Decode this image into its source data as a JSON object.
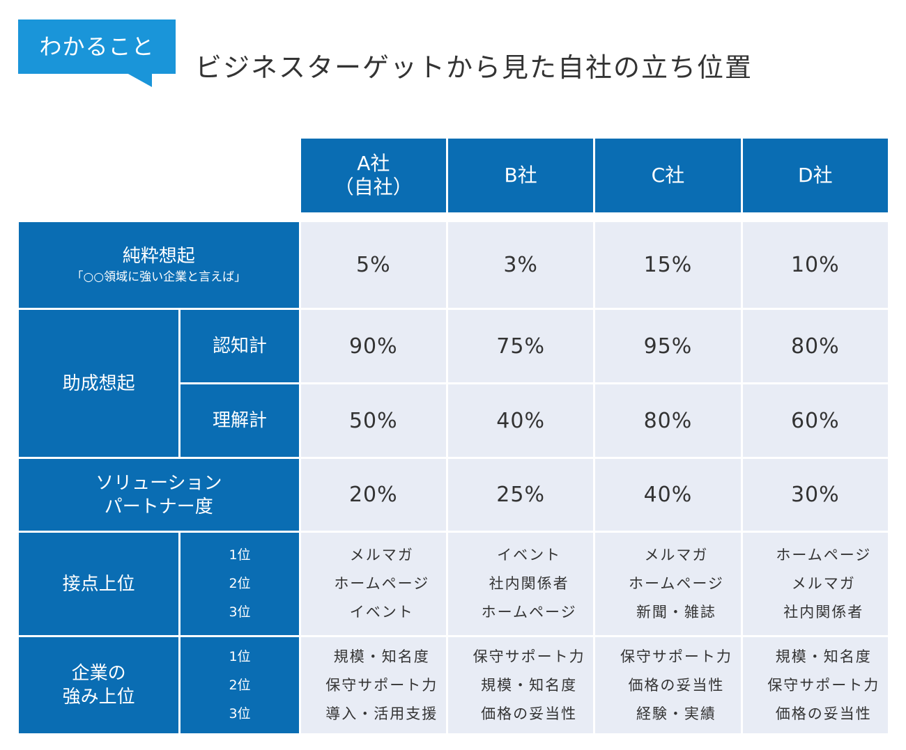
{
  "badge": "わかること",
  "title": "ビジネスターゲットから見た自社の立ち位置",
  "companies": [
    {
      "line1": "A社",
      "line2": "（自社）"
    },
    {
      "line1": "B社",
      "line2": ""
    },
    {
      "line1": "C社",
      "line2": ""
    },
    {
      "line1": "D社",
      "line2": ""
    }
  ],
  "rows": {
    "pure_recall": {
      "label": "純粋想起",
      "sublabel": "「○○領域に強い企業と言えば」",
      "values": [
        "5%",
        "3%",
        "15%",
        "10%"
      ]
    },
    "aided_recall": {
      "label": "助成想起",
      "awareness": {
        "label": "認知計",
        "values": [
          "90%",
          "75%",
          "95%",
          "80%"
        ]
      },
      "understanding": {
        "label": "理解計",
        "values": [
          "50%",
          "40%",
          "80%",
          "60%"
        ]
      }
    },
    "solution_partner": {
      "label1": "ソリューション",
      "label2": "パートナー度",
      "values": [
        "20%",
        "25%",
        "40%",
        "30%"
      ]
    },
    "touchpoints": {
      "label": "接点上位",
      "ranks": [
        "1位",
        "2位",
        "3位"
      ],
      "items": [
        [
          "メルマガ",
          "ホームページ",
          "イベント"
        ],
        [
          "イベント",
          "社内関係者",
          "ホームページ"
        ],
        [
          "メルマガ",
          "ホームページ",
          "新聞・雑誌"
        ],
        [
          "ホームページ",
          "メルマガ",
          "社内関係者"
        ]
      ]
    },
    "strengths": {
      "label1": "企業の",
      "label2": "強み上位",
      "ranks": [
        "1位",
        "2位",
        "3位"
      ],
      "items": [
        [
          "規模・知名度",
          "保守サポート力",
          "導入・活用支援"
        ],
        [
          "保守サポート力",
          "規模・知名度",
          "価格の妥当性"
        ],
        [
          "保守サポート力",
          "価格の妥当性",
          "経験・実績"
        ],
        [
          "規模・知名度",
          "保守サポート力",
          "価格の妥当性"
        ]
      ]
    }
  },
  "colors": {
    "header": "#0a6db3",
    "badge": "#1a95d9",
    "cell": "#e8ecf5"
  }
}
